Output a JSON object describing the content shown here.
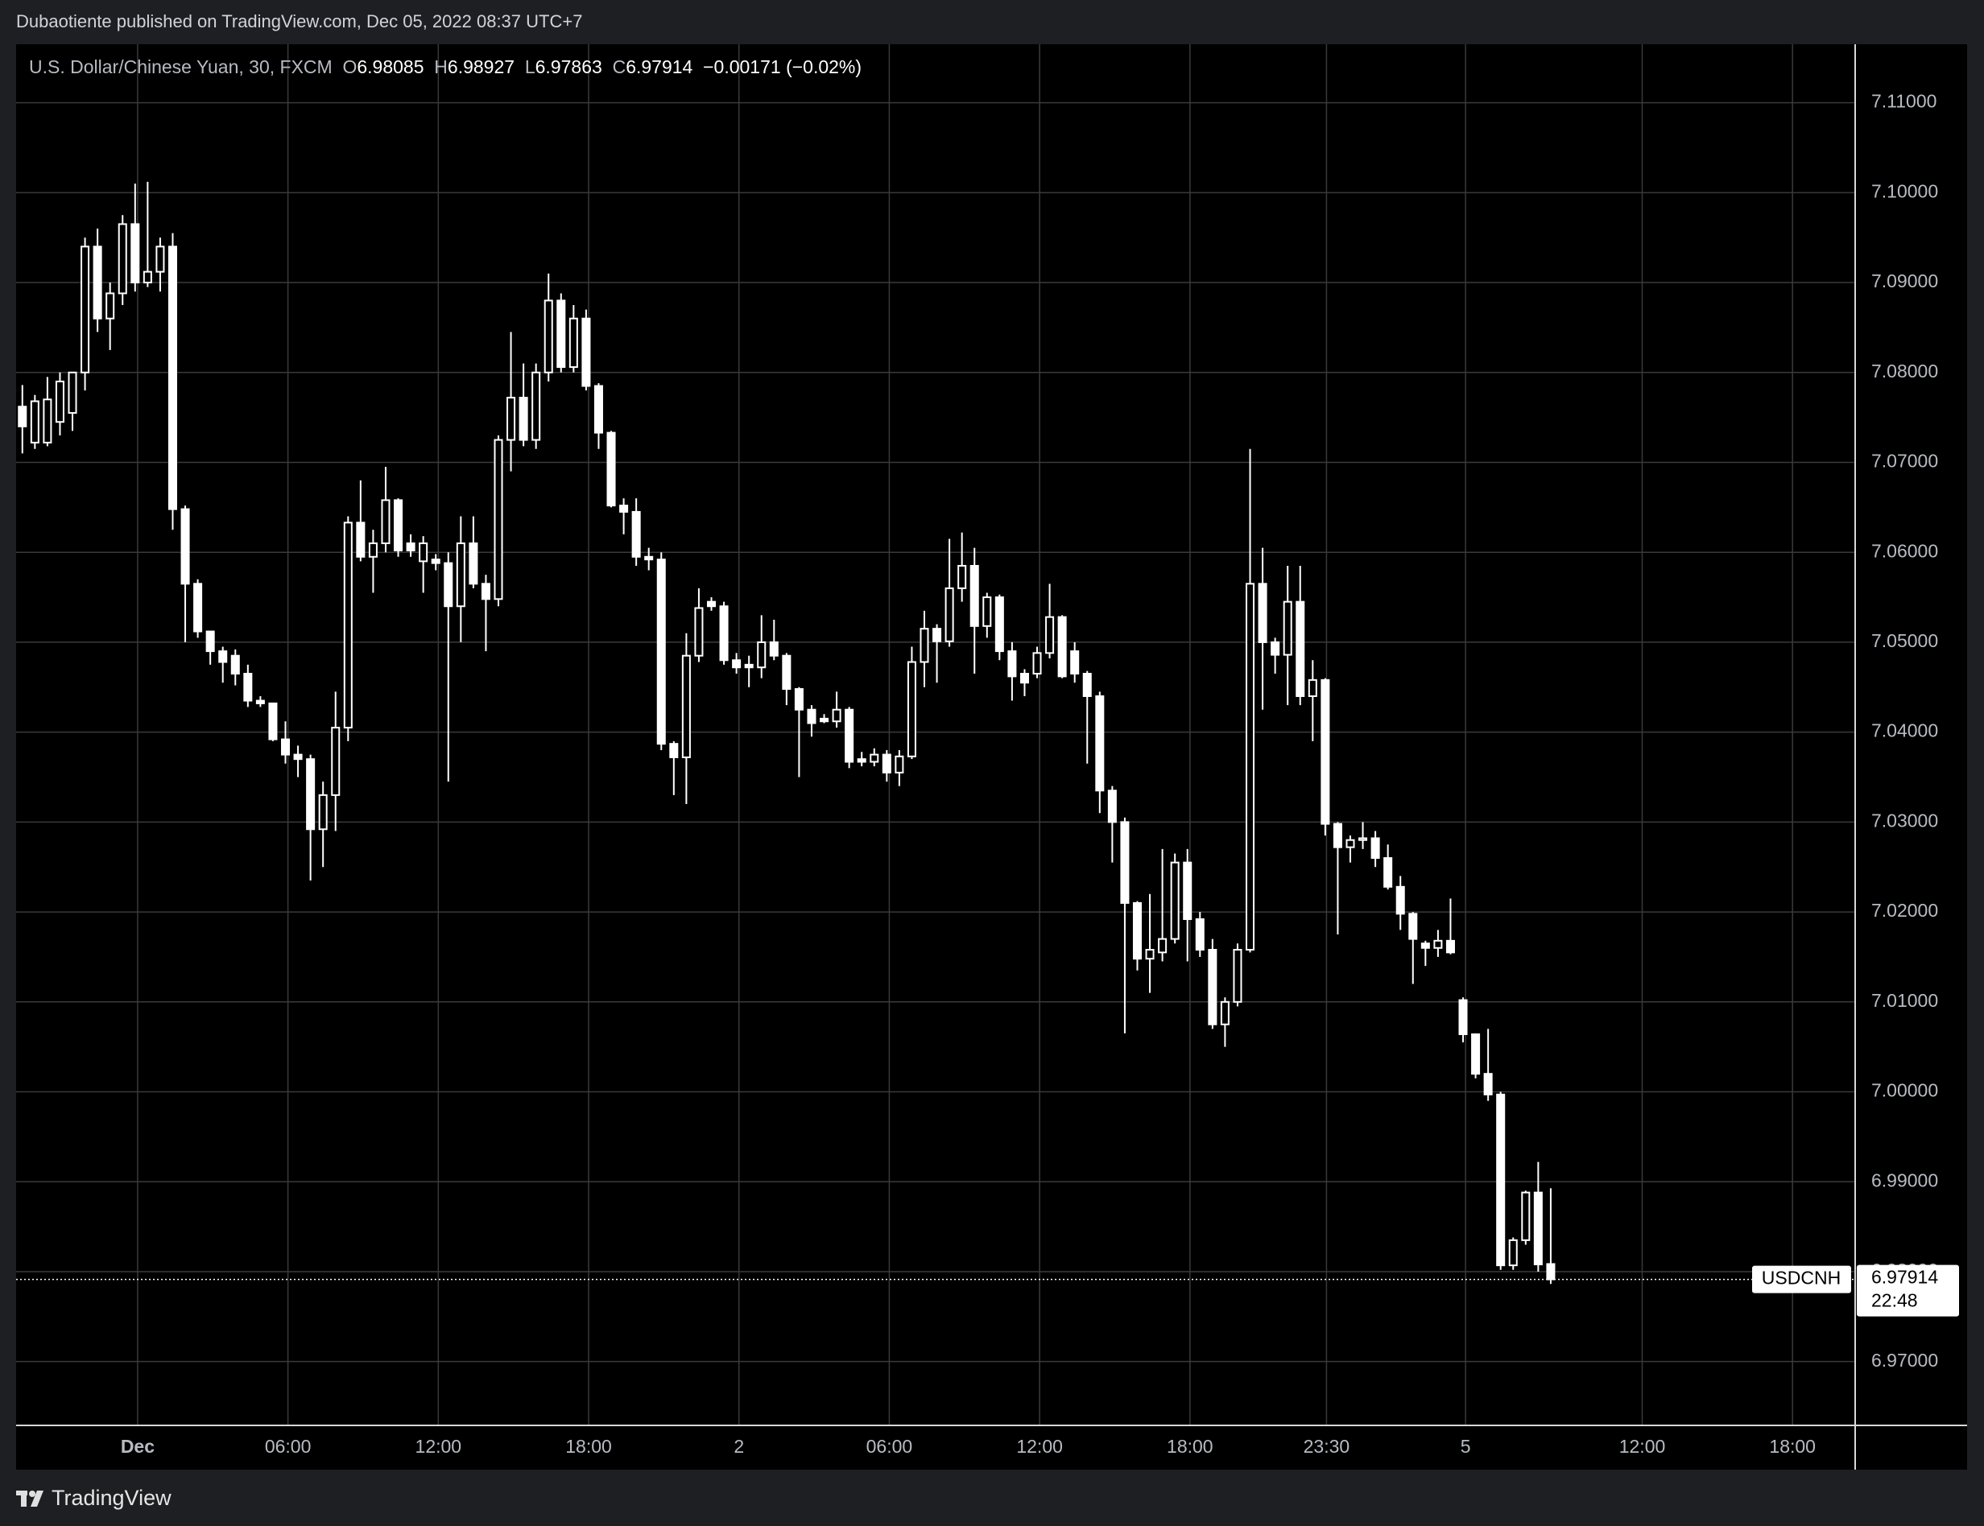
{
  "chart_data": {
    "type": "candlestick",
    "publisher": "Dubaotiente published on TradingView.com, Dec 05, 2022 08:37 UTC+7",
    "title": "U.S. Dollar/Chinese Yuan, 30, FXCM",
    "ohlc_labels": [
      "O",
      "H",
      "L",
      "C"
    ],
    "change": "−0.00171 (−0.02%)",
    "symbol": "USDCNH",
    "countdown": "22:48",
    "brand": "TradingView",
    "color": "#ffffff",
    "background": "#000000",
    "grid": true,
    "grid_color": "#3a3a3a",
    "open": [
      7.0762,
      7.0722,
      7.0722,
      7.0745,
      7.0755,
      7.08,
      7.094,
      7.086,
      7.0888,
      7.0965,
      7.09,
      7.0912,
      7.094,
      7.0648,
      7.0565,
      7.0512,
      7.049,
      7.0485,
      7.0465,
      7.0435,
      7.0432,
      7.0392,
      7.0375,
      7.037,
      7.0292,
      7.033,
      7.0405,
      7.0633,
      7.0595,
      7.061,
      7.0658,
      7.061,
      7.059,
      7.0592,
      7.0588,
      7.054,
      7.061,
      7.0565,
      7.0548,
      7.0725,
      7.0772,
      7.0725,
      7.08,
      7.088,
      7.0806,
      7.086,
      7.0785,
      7.0733,
      7.0652,
      7.0645,
      7.0595,
      7.0592,
      7.0387,
      7.0372,
      7.0485,
      7.0545,
      7.054,
      7.048,
      7.0475,
      7.0472,
      7.05,
      7.0485,
      7.0448,
      7.0425,
      7.0415,
      7.0412,
      7.0425,
      7.037,
      7.0367,
      7.0375,
      7.0355,
      7.0373,
      7.0478,
      7.0515,
      7.0501,
      7.056,
      7.0585,
      7.0518,
      7.055,
      7.049,
      7.0465,
      7.0465,
      7.0488,
      7.0528,
      7.049,
      7.0465,
      7.044,
      7.0335,
      7.03,
      7.021,
      7.0148,
      7.0155,
      7.017,
      7.0255,
      7.0192,
      7.0158,
      7.0075,
      7.01,
      7.0158,
      7.0565,
      7.05,
      7.0486,
      7.0545,
      7.044,
      7.0458,
      7.0298,
      7.0272,
      7.028,
      7.0282,
      7.026,
      7.0228,
      7.0198,
      7.0165,
      7.016,
      7.0168,
      7.0102,
      7.0064,
      7.002,
      6.9997,
      6.9807,
      6.9835,
      6.9888,
      6.98085
    ],
    "high": [
      7.0786,
      7.0775,
      7.0795,
      7.08,
      7.08,
      7.095,
      7.096,
      7.09,
      7.0975,
      7.101,
      7.1012,
      7.095,
      7.0955,
      7.0652,
      7.057,
      7.0512,
      7.0495,
      7.0492,
      7.0475,
      7.044,
      7.0432,
      7.0412,
      7.0385,
      7.0375,
      7.0345,
      7.0445,
      7.064,
      7.068,
      7.0625,
      7.0695,
      7.066,
      7.062,
      7.0618,
      7.0598,
      7.06,
      7.064,
      7.064,
      7.0575,
      7.073,
      7.0845,
      7.081,
      7.081,
      7.091,
      7.0888,
      7.0875,
      7.087,
      7.0788,
      7.0735,
      7.066,
      7.066,
      7.0605,
      7.06,
      7.039,
      7.051,
      7.056,
      7.055,
      7.0545,
      7.0488,
      7.0485,
      7.053,
      7.0525,
      7.0488,
      7.045,
      7.043,
      7.042,
      7.0445,
      7.0428,
      7.0378,
      7.0382,
      7.038,
      7.038,
      7.0495,
      7.0535,
      7.052,
      7.0615,
      7.0622,
      7.0605,
      7.0555,
      7.0553,
      7.05,
      7.047,
      7.0495,
      7.0565,
      7.053,
      7.05,
      7.0468,
      7.0445,
      7.034,
      7.0305,
      7.0212,
      7.022,
      7.027,
      7.0265,
      7.027,
      7.02,
      7.017,
      7.0105,
      7.0165,
      7.0715,
      7.0605,
      7.0505,
      7.0585,
      7.0585,
      7.048,
      7.046,
      7.03,
      7.0285,
      7.03,
      7.029,
      7.0275,
      7.024,
      7.02,
      7.0168,
      7.018,
      7.0215,
      7.0105,
      7.0065,
      7.007,
      7.0,
      6.9838,
      6.989,
      6.9922,
      6.98927
    ],
    "low": [
      7.071,
      7.0715,
      7.0718,
      7.073,
      7.0735,
      7.078,
      7.0845,
      7.0825,
      7.0875,
      7.089,
      7.0895,
      7.089,
      7.0625,
      7.05,
      7.0505,
      7.0475,
      7.0455,
      7.0452,
      7.0428,
      7.0428,
      7.039,
      7.0365,
      7.035,
      7.0235,
      7.025,
      7.029,
      7.039,
      7.059,
      7.0555,
      7.06,
      7.0595,
      7.0595,
      7.0555,
      7.058,
      7.0345,
      7.05,
      7.056,
      7.049,
      7.054,
      7.069,
      7.0718,
      7.0715,
      7.079,
      7.08,
      7.08,
      7.078,
      7.0715,
      7.065,
      7.062,
      7.0585,
      7.058,
      7.038,
      7.033,
      7.032,
      7.0478,
      7.0535,
      7.0475,
      7.0465,
      7.045,
      7.046,
      7.048,
      7.043,
      7.035,
      7.0395,
      7.041,
      7.0405,
      7.036,
      7.0362,
      7.0362,
      7.0345,
      7.034,
      7.037,
      7.045,
      7.0455,
      7.0495,
      7.0545,
      7.0465,
      7.0505,
      7.048,
      7.0435,
      7.044,
      7.046,
      7.0482,
      7.046,
      7.0455,
      7.0365,
      7.031,
      7.0255,
      7.0065,
      7.0135,
      7.011,
      7.0145,
      7.0165,
      7.0145,
      7.015,
      7.007,
      7.005,
      7.0095,
      7.0155,
      7.0425,
      7.0465,
      7.043,
      7.043,
      7.039,
      7.0285,
      7.0175,
      7.0255,
      7.027,
      7.025,
      7.0225,
      7.018,
      7.012,
      7.014,
      7.015,
      7.0153,
      7.0055,
      7.0015,
      6.999,
      6.9802,
      6.9802,
      6.983,
      6.98,
      6.97863
    ],
    "close": [
      7.074,
      7.0768,
      7.077,
      7.079,
      7.08,
      7.094,
      7.086,
      7.0888,
      7.0965,
      7.09,
      7.0912,
      7.094,
      7.0648,
      7.0565,
      7.0512,
      7.049,
      7.0478,
      7.0465,
      7.0435,
      7.0432,
      7.0392,
      7.0375,
      7.037,
      7.0292,
      7.033,
      7.0405,
      7.0633,
      7.0595,
      7.061,
      7.0658,
      7.0602,
      7.0602,
      7.061,
      7.0588,
      7.054,
      7.061,
      7.0565,
      7.0548,
      7.0725,
      7.0772,
      7.0725,
      7.08,
      7.088,
      7.0806,
      7.086,
      7.0785,
      7.0733,
      7.0652,
      7.0645,
      7.0595,
      7.0592,
      7.0387,
      7.0372,
      7.0485,
      7.0538,
      7.054,
      7.048,
      7.0472,
      7.0472,
      7.05,
      7.0485,
      7.0448,
      7.0425,
      7.041,
      7.0412,
      7.0425,
      7.0367,
      7.0367,
      7.0375,
      7.0355,
      7.0373,
      7.0478,
      7.0515,
      7.0501,
      7.056,
      7.0585,
      7.0518,
      7.055,
      7.049,
      7.0462,
      7.0455,
      7.0488,
      7.0528,
      7.0462,
      7.0465,
      7.044,
      7.0335,
      7.03,
      7.021,
      7.0148,
      7.0158,
      7.017,
      7.0255,
      7.0192,
      7.0158,
      7.0075,
      7.01,
      7.0158,
      7.0565,
      7.05,
      7.0486,
      7.0545,
      7.044,
      7.0458,
      7.0298,
      7.0272,
      7.028,
      7.0282,
      7.026,
      7.0228,
      7.0198,
      7.017,
      7.016,
      7.0168,
      7.0155,
      7.0064,
      7.002,
      6.9997,
      6.9807,
      6.9835,
      6.9888,
      6.9808,
      6.97914
    ],
    "xlim": [
      -0.5,
      146.3
    ],
    "xticks": [
      {
        "value": 9.2,
        "label": "Dec"
      },
      {
        "value": 21.2,
        "label": "06:00"
      },
      {
        "value": 33.2,
        "label": "12:00"
      },
      {
        "value": 45.2,
        "label": "18:00"
      },
      {
        "value": 57.2,
        "label": "2"
      },
      {
        "value": 69.2,
        "label": "06:00"
      },
      {
        "value": 81.2,
        "label": "12:00"
      },
      {
        "value": 93.2,
        "label": "18:00"
      },
      {
        "value": 104.1,
        "label": "23:30"
      },
      {
        "value": 115.2,
        "label": "5"
      },
      {
        "value": 129.3,
        "label": "12:00"
      },
      {
        "value": 141.3,
        "label": "18:00"
      }
    ],
    "ylim": [
      6.9629,
      7.1165
    ],
    "yticks": [
      {
        "value": 7.11,
        "label": "7.11000"
      },
      {
        "value": 7.1,
        "label": "7.10000"
      },
      {
        "value": 7.09,
        "label": "7.09000"
      },
      {
        "value": 7.08,
        "label": "7.08000"
      },
      {
        "value": 7.07,
        "label": "7.07000"
      },
      {
        "value": 7.06,
        "label": "7.06000"
      },
      {
        "value": 7.05,
        "label": "7.05000"
      },
      {
        "value": 7.04,
        "label": "7.04000"
      },
      {
        "value": 7.03,
        "label": "7.03000"
      },
      {
        "value": 7.02,
        "label": "7.02000"
      },
      {
        "value": 7.01,
        "label": "7.01000"
      },
      {
        "value": 7.0,
        "label": "7.00000"
      },
      {
        "value": 6.99,
        "label": "6.99000"
      },
      {
        "value": 6.98,
        "label": "6.98000"
      },
      {
        "value": 6.97,
        "label": "6.97000"
      }
    ]
  }
}
